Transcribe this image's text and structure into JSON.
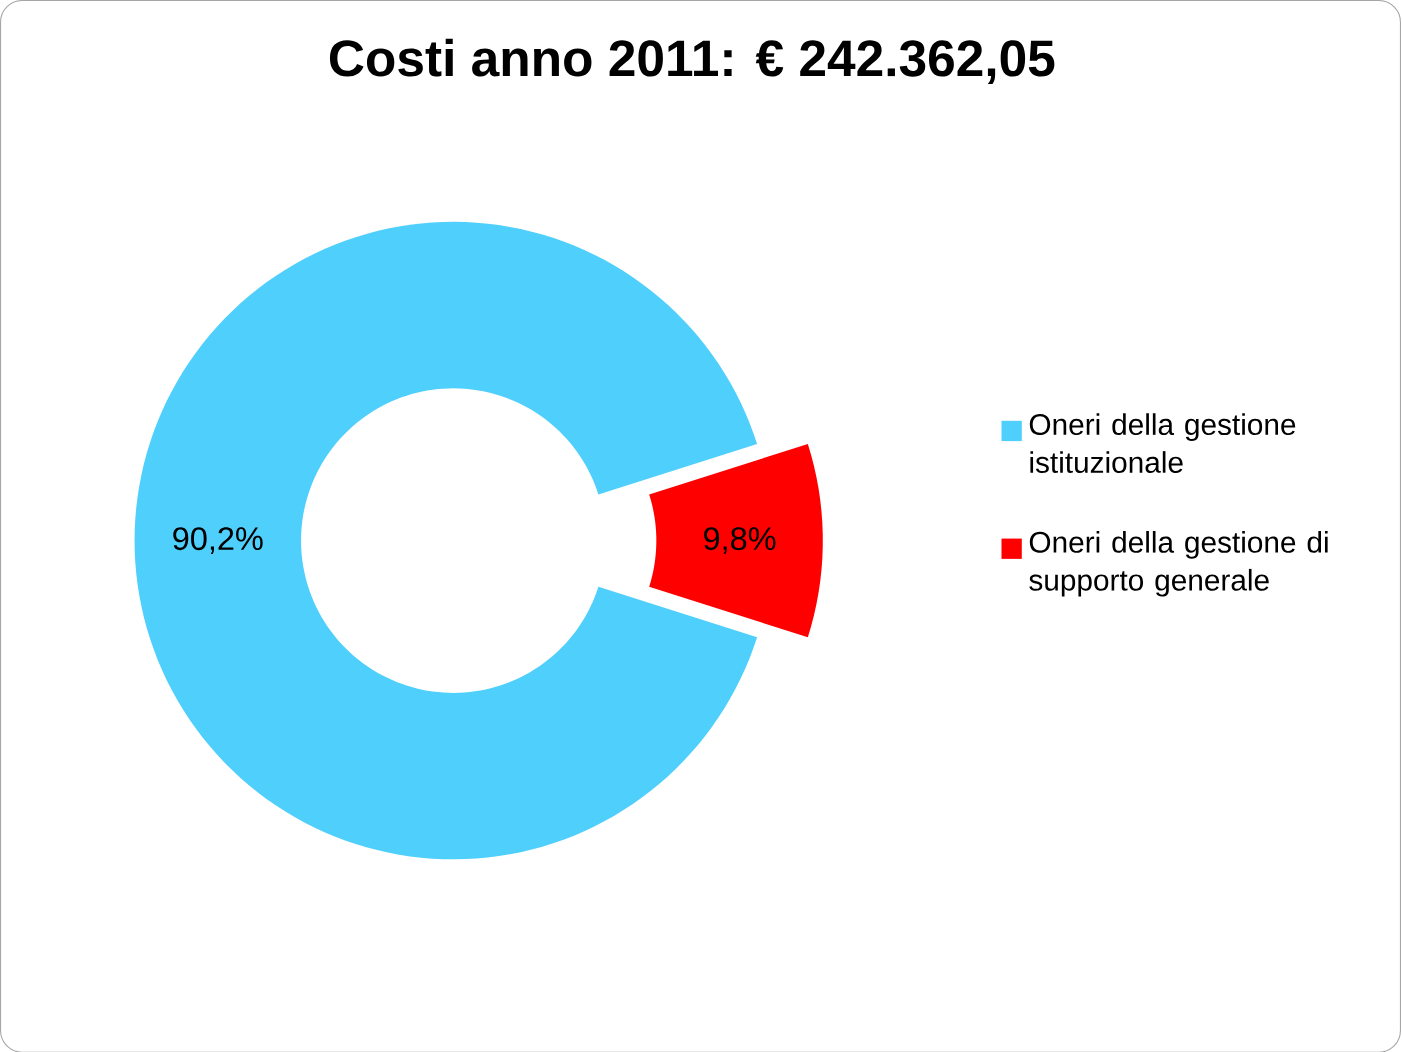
{
  "chart_data": {
    "type": "donut",
    "title": "Costi anno 2011: € 242.362,05",
    "categories": [
      "Oneri della gestione istituzionale",
      "Oneri della gestione di supporto generale"
    ],
    "values": [
      90.2,
      9.8
    ],
    "value_labels": [
      "90,2%",
      "9,8%"
    ],
    "colors": [
      "#4fcffc",
      "#ff0000"
    ],
    "legend": "right"
  }
}
